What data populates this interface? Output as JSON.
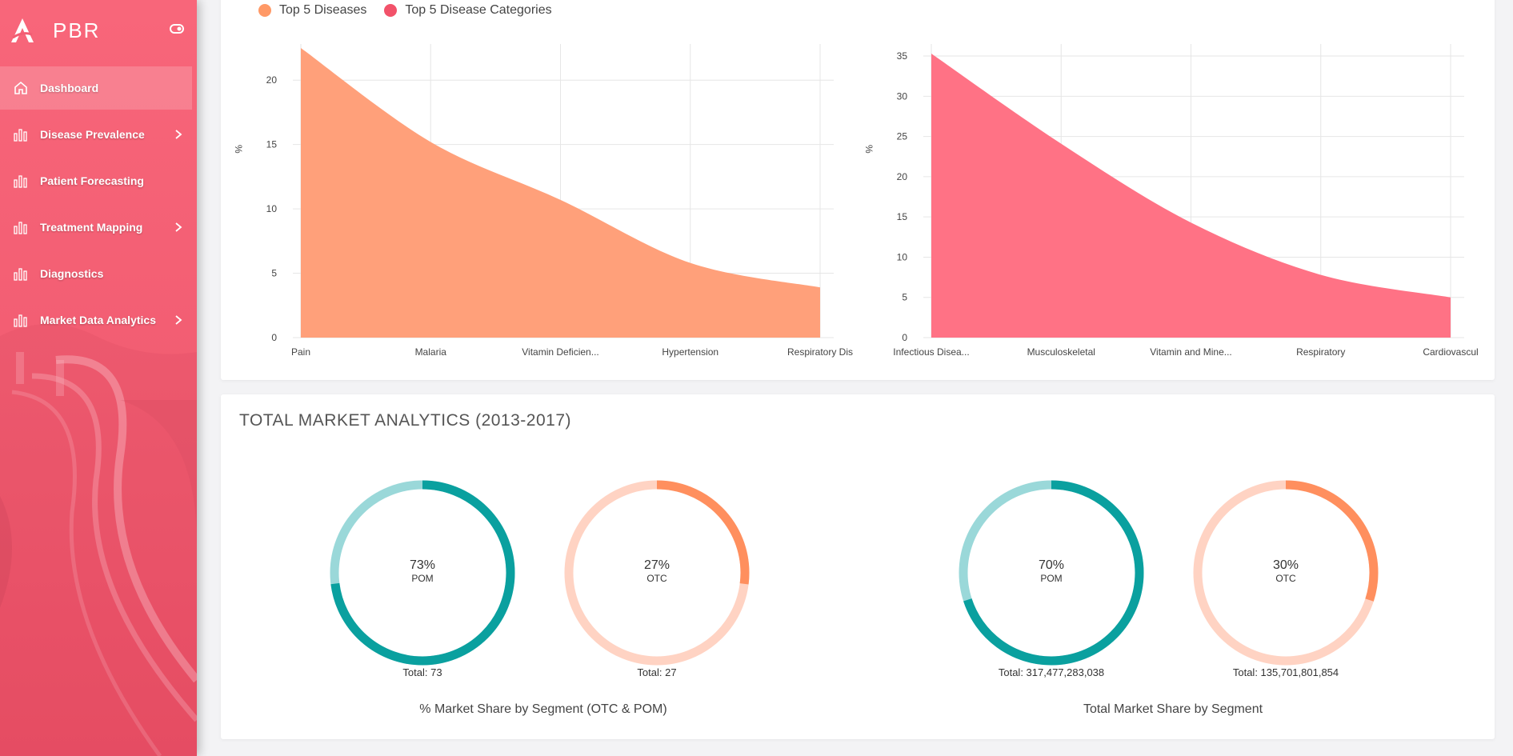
{
  "brand": {
    "name": "PBR",
    "logo_icon": "brand-a-logo",
    "toggle_icon": "sidebar-toggle-icon"
  },
  "sidebar": {
    "items": [
      {
        "label": "Dashboard",
        "icon": "home-icon",
        "active": true,
        "has_children": false
      },
      {
        "label": "Disease Prevalence",
        "icon": "bar-chart-icon",
        "active": false,
        "has_children": true
      },
      {
        "label": "Patient Forecasting",
        "icon": "bar-chart-icon",
        "active": false,
        "has_children": false
      },
      {
        "label": "Treatment Mapping",
        "icon": "bar-chart-icon",
        "active": false,
        "has_children": true
      },
      {
        "label": "Diagnostics",
        "icon": "bar-chart-icon",
        "active": false,
        "has_children": false
      },
      {
        "label": "Market Data Analytics",
        "icon": "bar-chart-icon",
        "active": false,
        "has_children": true
      }
    ]
  },
  "colors": {
    "sidebar": "#f25d72",
    "orange": "#ffa07a",
    "orange_dark": "#ff8f5e",
    "orange_light": "#ffd3c3",
    "red": "#ff7285",
    "teal": "#0aa09f",
    "teal_light": "#9ad8d9"
  },
  "legend": [
    {
      "label": "Top 5 Diseases",
      "color": "#ff9966"
    },
    {
      "label": "Top 5 Disease Categories",
      "color": "#f2526a"
    }
  ],
  "chart_data": [
    {
      "type": "area",
      "title": "",
      "series_name": "Top 5 Diseases",
      "ylabel": "%",
      "categories": [
        "Pain",
        "Malaria",
        "Vitamin Deficien...",
        "Hypertension",
        "Respiratory Dis"
      ],
      "values": [
        22.5,
        15.2,
        10.7,
        5.8,
        3.9
      ],
      "yticks": [
        0,
        5,
        10,
        15,
        20
      ],
      "ylim": [
        0,
        22.5
      ],
      "grid": true,
      "color": "#ffa07a"
    },
    {
      "type": "area",
      "title": "",
      "series_name": "Top 5 Disease Categories",
      "ylabel": "%",
      "categories": [
        "Infectious Disea...",
        "Musculoskeletal",
        "Vitamin and Mine...",
        "Respiratory",
        "Cardiovascul"
      ],
      "values": [
        35.3,
        24.1,
        14.3,
        7.8,
        5.0
      ],
      "yticks": [
        0,
        5,
        10,
        15,
        20,
        25,
        30,
        35
      ],
      "ylim": [
        0,
        36
      ],
      "grid": true,
      "color": "#ff7285"
    },
    {
      "type": "pie",
      "title": "",
      "pct": "73%",
      "segment": "POM",
      "value": 73,
      "total_label": "Total: 73",
      "color": "#0aa09f",
      "track_color": "#9ad8d9"
    },
    {
      "type": "pie",
      "title": "",
      "pct": "27%",
      "segment": "OTC",
      "value": 27,
      "total_label": "Total: 27",
      "color": "#ff8f5e",
      "track_color": "#ffd3c3"
    },
    {
      "type": "pie",
      "title": "",
      "pct": "70%",
      "segment": "POM",
      "value": 70,
      "total_label": "Total: 317,477,283,038",
      "color": "#0aa09f",
      "track_color": "#9ad8d9"
    },
    {
      "type": "pie",
      "title": "",
      "pct": "30%",
      "segment": "OTC",
      "value": 30,
      "total_label": "Total: 135,701,801,854",
      "color": "#ff8f5e",
      "track_color": "#ffd3c3"
    }
  ],
  "market": {
    "title": "TOTAL MARKET ANALYTICS (2013-2017)",
    "captions": [
      "% Market Share by Segment (OTC & POM)",
      "Total Market Share by Segment"
    ]
  }
}
